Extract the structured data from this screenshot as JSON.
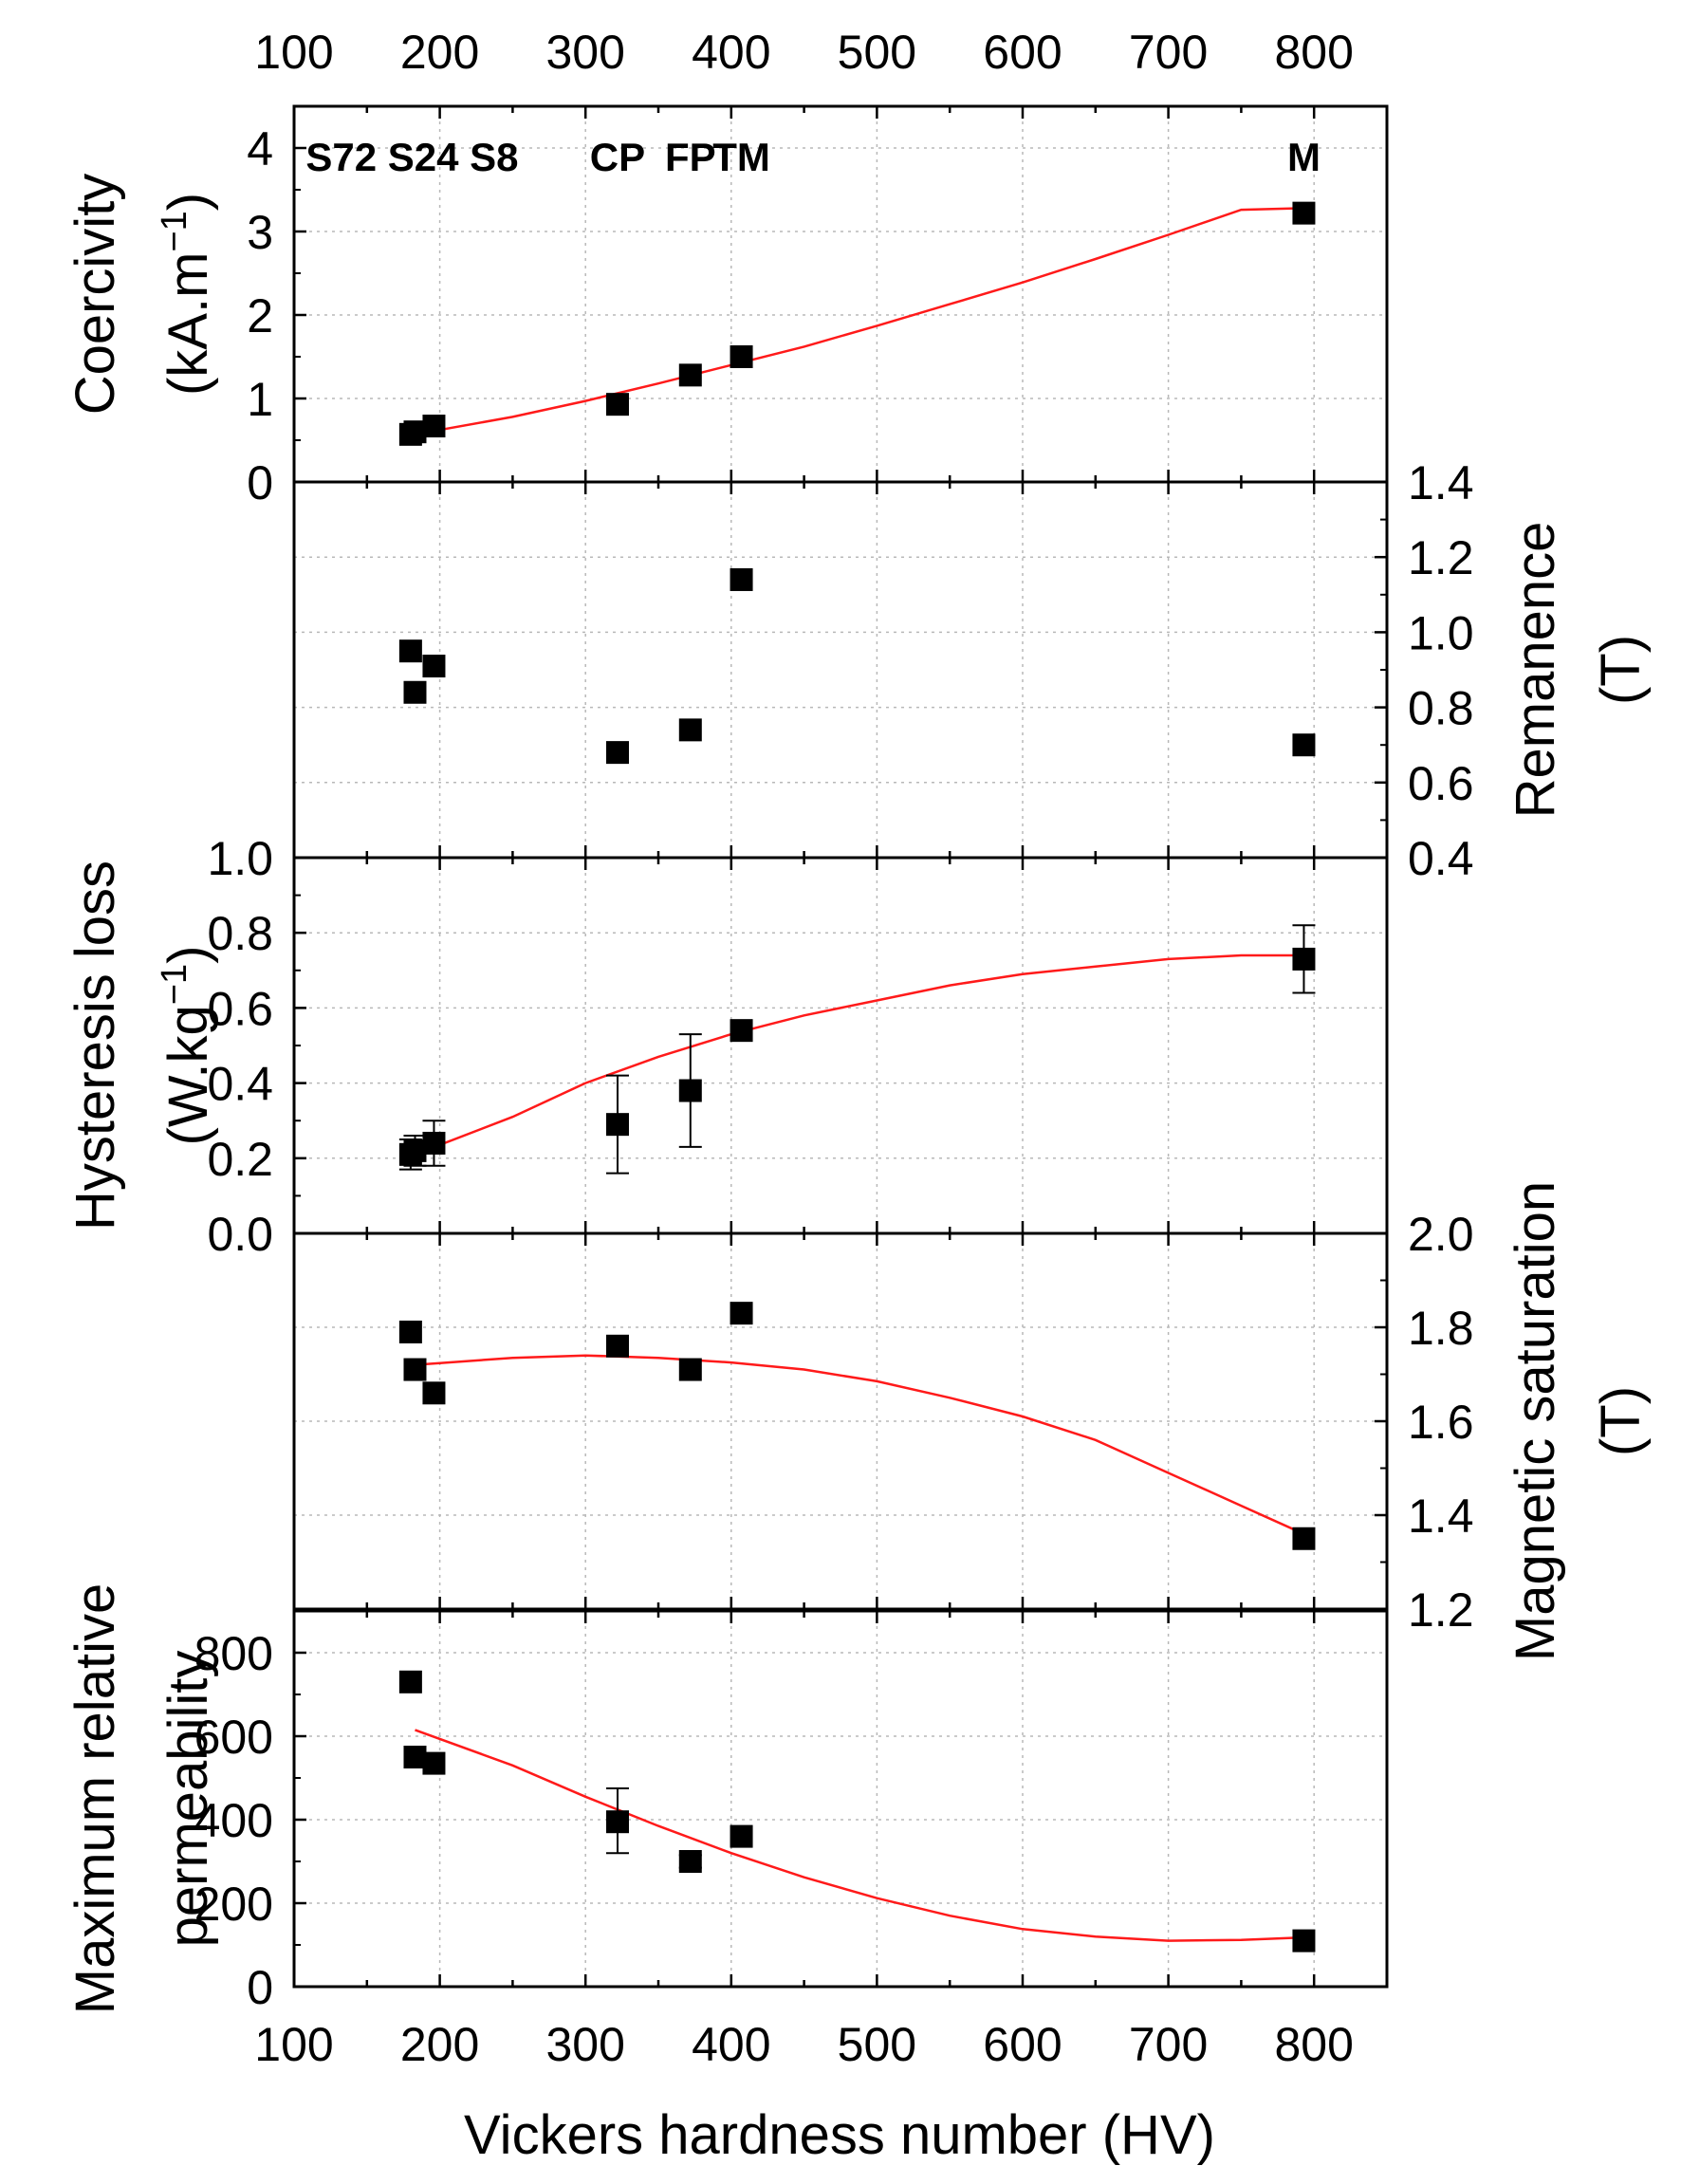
{
  "chart_data": {
    "type": "scatter",
    "title": "",
    "xlabel": "Vickers hardness number (HV)",
    "xlim": [
      100,
      850
    ],
    "xticks": [
      100,
      200,
      300,
      400,
      500,
      600,
      700,
      800
    ],
    "sample_labels": [
      {
        "text": "S72 S24 S8",
        "x": 181
      },
      {
        "text": "CP",
        "x": 322
      },
      {
        "text": "FP",
        "x": 372
      },
      {
        "text": "TM",
        "x": 407
      },
      {
        "text": "M",
        "x": 793
      }
    ],
    "panels": [
      {
        "id": "coercivity",
        "ylabel_line1": "Coercivity",
        "ylabel_line2": "(kA.m",
        "ylabel_sup": "−1",
        "ylabel_close": ")",
        "axis_side": "left",
        "ylim": [
          0,
          4.5
        ],
        "yticks": [
          0,
          1,
          2,
          3,
          4
        ],
        "tick_labels": [
          "0",
          "1",
          "2",
          "3",
          "4"
        ],
        "points": [
          {
            "x": 180,
            "y": 0.57
          },
          {
            "x": 183,
            "y": 0.6
          },
          {
            "x": 196,
            "y": 0.67
          },
          {
            "x": 322,
            "y": 0.93
          },
          {
            "x": 372,
            "y": 1.28
          },
          {
            "x": 407,
            "y": 1.5
          },
          {
            "x": 793,
            "y": 3.22
          }
        ],
        "errors": [],
        "fit": [
          [
            183,
            0.57
          ],
          [
            250,
            0.78
          ],
          [
            300,
            0.97
          ],
          [
            350,
            1.18
          ],
          [
            400,
            1.4
          ],
          [
            450,
            1.62
          ],
          [
            500,
            1.87
          ],
          [
            550,
            2.13
          ],
          [
            600,
            2.39
          ],
          [
            650,
            2.67
          ],
          [
            700,
            2.96
          ],
          [
            750,
            3.26
          ],
          [
            793,
            3.28
          ]
        ]
      },
      {
        "id": "remanence",
        "ylabel_line1": "Remanence",
        "ylabel_line2": "(T)",
        "axis_side": "right",
        "ylim": [
          0.4,
          1.4
        ],
        "yticks": [
          0.4,
          0.6,
          0.8,
          1.0,
          1.2,
          1.4
        ],
        "tick_labels": [
          "0.4",
          "0.6",
          "0.8",
          "1.0",
          "1.2",
          "1.4"
        ],
        "points": [
          {
            "x": 180,
            "y": 0.95
          },
          {
            "x": 183,
            "y": 0.84
          },
          {
            "x": 196,
            "y": 0.91
          },
          {
            "x": 322,
            "y": 0.68
          },
          {
            "x": 372,
            "y": 0.74
          },
          {
            "x": 407,
            "y": 1.14
          },
          {
            "x": 793,
            "y": 0.7
          }
        ],
        "errors": [],
        "fit": []
      },
      {
        "id": "hysteresis",
        "ylabel_line1": "Hysteresis loss",
        "ylabel_line2": "(W.kg",
        "ylabel_sup": "−1",
        "ylabel_close": ")",
        "axis_side": "left",
        "ylim": [
          0,
          1.0
        ],
        "yticks": [
          0,
          0.2,
          0.4,
          0.6,
          0.8,
          1.0
        ],
        "tick_labels": [
          "0.0",
          "0.2",
          "0.4",
          "0.6",
          "0.8",
          "1.0"
        ],
        "points": [
          {
            "x": 180,
            "y": 0.21
          },
          {
            "x": 183,
            "y": 0.22
          },
          {
            "x": 196,
            "y": 0.24
          },
          {
            "x": 322,
            "y": 0.29
          },
          {
            "x": 372,
            "y": 0.38
          },
          {
            "x": 407,
            "y": 0.54
          },
          {
            "x": 793,
            "y": 0.73
          }
        ],
        "errors": [
          {
            "x": 180,
            "lo": 0.17,
            "hi": 0.25
          },
          {
            "x": 183,
            "lo": 0.18,
            "hi": 0.26
          },
          {
            "x": 196,
            "lo": 0.18,
            "hi": 0.3
          },
          {
            "x": 322,
            "lo": 0.16,
            "hi": 0.42
          },
          {
            "x": 372,
            "lo": 0.23,
            "hi": 0.53
          },
          {
            "x": 793,
            "lo": 0.64,
            "hi": 0.82
          }
        ],
        "fit": [
          [
            183,
            0.21
          ],
          [
            250,
            0.31
          ],
          [
            300,
            0.4
          ],
          [
            350,
            0.47
          ],
          [
            400,
            0.53
          ],
          [
            450,
            0.58
          ],
          [
            500,
            0.62
          ],
          [
            550,
            0.66
          ],
          [
            600,
            0.69
          ],
          [
            650,
            0.71
          ],
          [
            700,
            0.73
          ],
          [
            750,
            0.74
          ],
          [
            793,
            0.74
          ]
        ]
      },
      {
        "id": "saturation",
        "ylabel_line1": "Magnetic saturation",
        "ylabel_line2": "(T)",
        "axis_side": "right",
        "ylim": [
          1.2,
          2.0
        ],
        "yticks": [
          1.2,
          1.4,
          1.6,
          1.8,
          2.0
        ],
        "tick_labels": [
          "1.2",
          "1.4",
          "1.6",
          "1.8",
          "2.0"
        ],
        "points": [
          {
            "x": 180,
            "y": 1.79
          },
          {
            "x": 183,
            "y": 1.71
          },
          {
            "x": 196,
            "y": 1.66
          },
          {
            "x": 322,
            "y": 1.76
          },
          {
            "x": 372,
            "y": 1.71
          },
          {
            "x": 407,
            "y": 1.83
          },
          {
            "x": 793,
            "y": 1.35
          }
        ],
        "errors": [],
        "fit": [
          [
            183,
            1.72
          ],
          [
            250,
            1.735
          ],
          [
            300,
            1.74
          ],
          [
            350,
            1.735
          ],
          [
            400,
            1.725
          ],
          [
            450,
            1.71
          ],
          [
            500,
            1.685
          ],
          [
            550,
            1.65
          ],
          [
            600,
            1.61
          ],
          [
            650,
            1.56
          ],
          [
            700,
            1.49
          ],
          [
            750,
            1.42
          ],
          [
            793,
            1.36
          ]
        ]
      },
      {
        "id": "permeability",
        "ylabel_line1": "Maximum relative",
        "ylabel_line2": "permeability",
        "axis_side": "left",
        "ylim": [
          0,
          900
        ],
        "yticks": [
          0,
          200,
          400,
          600,
          800
        ],
        "tick_labels": [
          "0",
          "200",
          "400",
          "600",
          "800"
        ],
        "points": [
          {
            "x": 180,
            "y": 730
          },
          {
            "x": 183,
            "y": 550
          },
          {
            "x": 196,
            "y": 535
          },
          {
            "x": 322,
            "y": 395
          },
          {
            "x": 372,
            "y": 300
          },
          {
            "x": 407,
            "y": 360
          },
          {
            "x": 793,
            "y": 110
          }
        ],
        "errors": [
          {
            "x": 322,
            "lo": 320,
            "hi": 475
          },
          {
            "x": 372,
            "lo": 285,
            "hi": 315
          }
        ],
        "fit": [
          [
            183,
            615
          ],
          [
            250,
            530
          ],
          [
            300,
            455
          ],
          [
            350,
            385
          ],
          [
            400,
            320
          ],
          [
            450,
            262
          ],
          [
            500,
            212
          ],
          [
            550,
            170
          ],
          [
            600,
            138
          ],
          [
            650,
            120
          ],
          [
            700,
            110
          ],
          [
            750,
            112
          ],
          [
            793,
            118
          ]
        ]
      }
    ]
  }
}
